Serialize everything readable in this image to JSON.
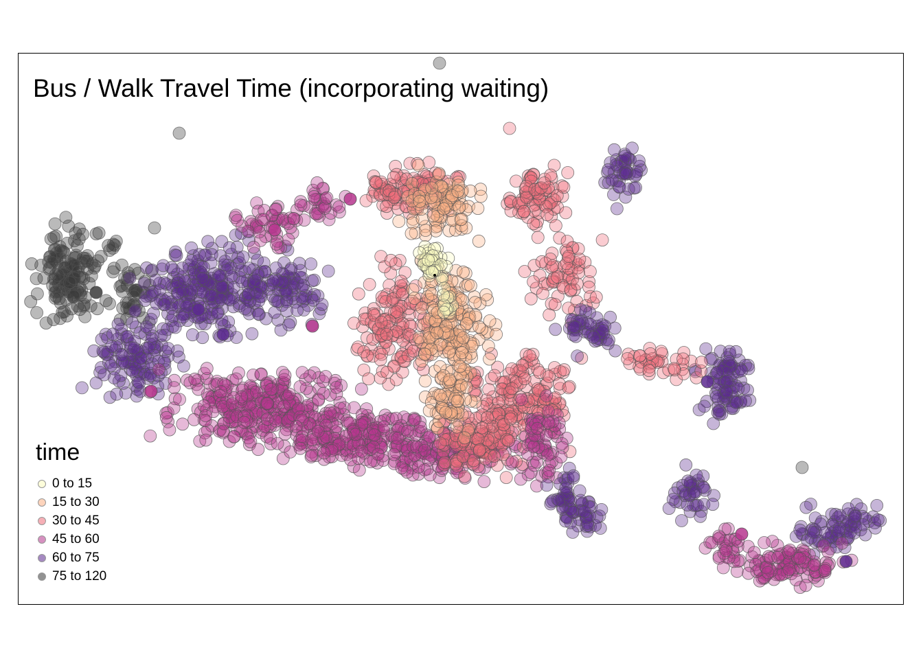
{
  "title": "Bus / Walk Travel Time (incorporating waiting)",
  "legend": {
    "title": "time",
    "items": [
      {
        "label": "0 to 15",
        "color": "#fcfdbf"
      },
      {
        "label": "15 to 30",
        "color": "#fcb286"
      },
      {
        "label": "30 to 45",
        "color": "#f06e7c"
      },
      {
        "label": "45 to 60",
        "color": "#b6368e"
      },
      {
        "label": "60 to 75",
        "color": "#5c2a8f"
      },
      {
        "label": "75 to 120",
        "color": "#3a3a3a"
      }
    ]
  },
  "map": {
    "point_opacity": 0.35,
    "point_stroke": "#555555"
  }
}
